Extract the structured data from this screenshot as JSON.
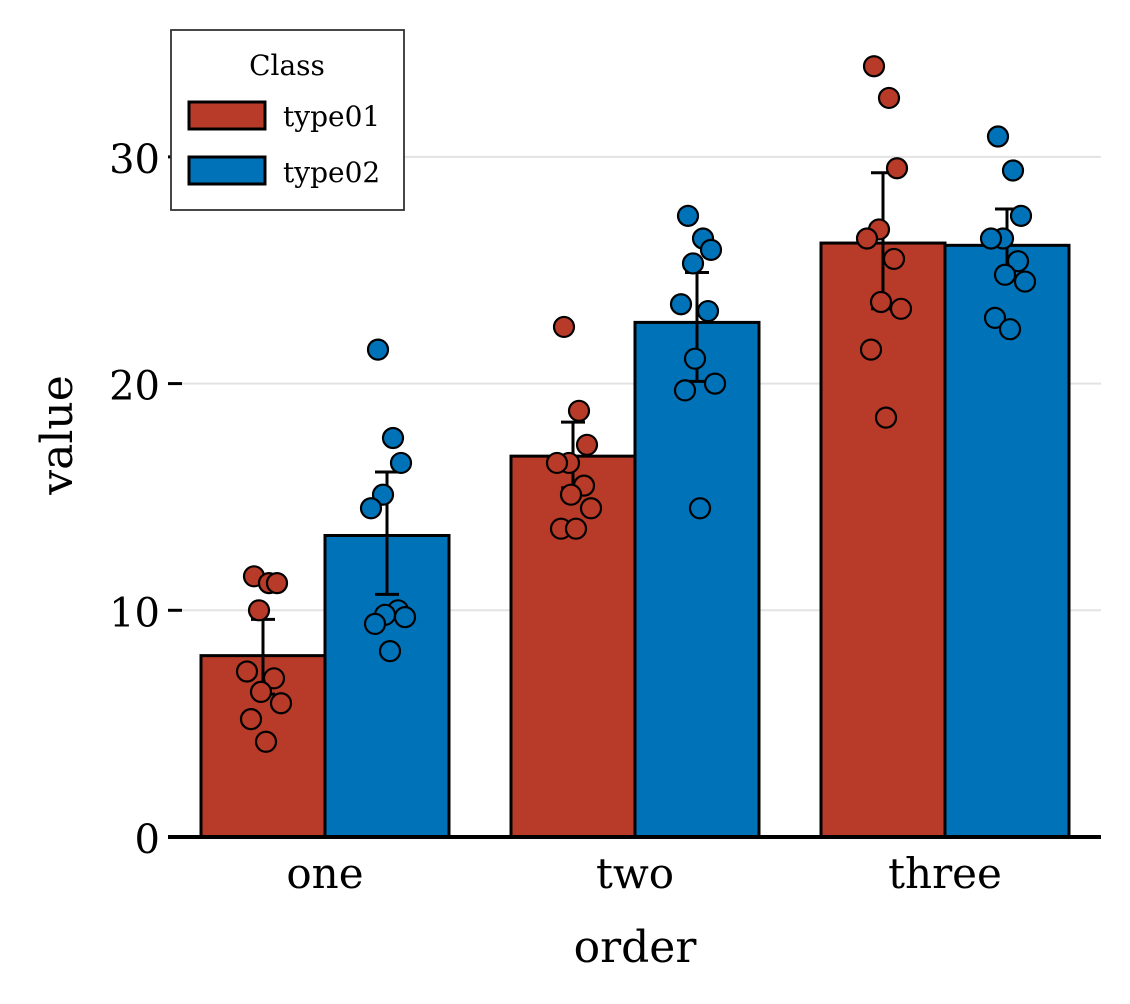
{
  "chart_data": {
    "type": "bar",
    "xlabel": "order",
    "ylabel": "value",
    "categories": [
      "one",
      "two",
      "three"
    ],
    "ylim": [
      0,
      36
    ],
    "yticks": [
      0,
      10,
      20,
      30
    ],
    "grid": "horizontal",
    "legend": {
      "title": "Class",
      "placement": "top-left"
    },
    "series": [
      {
        "name": "type01",
        "color": "#B83A28",
        "values": [
          8.0,
          16.8,
          26.2
        ],
        "error_low": [
          6.3,
          15.4,
          23.3
        ],
        "error_high": [
          9.6,
          18.3,
          29.3
        ],
        "points": [
          [
            11.5,
            11.2,
            11.2,
            10.0,
            7.3,
            7.0,
            6.4,
            5.9,
            5.2,
            4.2
          ],
          [
            22.5,
            18.8,
            17.3,
            16.5,
            16.5,
            15.5,
            15.1,
            14.5,
            13.6,
            13.6
          ],
          [
            34.0,
            32.6,
            29.5,
            26.8,
            26.4,
            25.5,
            23.6,
            23.3,
            21.5,
            18.5
          ]
        ]
      },
      {
        "name": "type02",
        "color": "#0072B8",
        "values": [
          13.3,
          22.7,
          26.1
        ],
        "error_low": [
          10.7,
          20.1,
          24.7
        ],
        "error_high": [
          16.1,
          24.9,
          27.7
        ],
        "points": [
          [
            21.5,
            17.6,
            16.5,
            15.1,
            14.5,
            10.0,
            9.8,
            9.7,
            9.4,
            8.2
          ],
          [
            27.4,
            26.4,
            25.9,
            25.3,
            23.5,
            23.2,
            21.1,
            20.0,
            19.7,
            14.5
          ],
          [
            30.9,
            29.4,
            27.4,
            26.4,
            26.4,
            25.4,
            24.8,
            24.5,
            22.9,
            22.4
          ]
        ]
      }
    ]
  }
}
